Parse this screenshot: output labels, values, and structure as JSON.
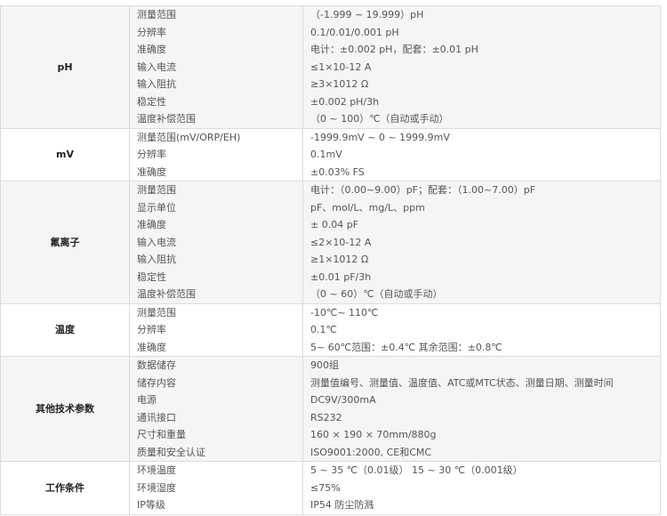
{
  "groups": [
    {
      "name": "pH",
      "rows": [
        [
          "测量范围",
          "（-1.999 ~ 19.999）pH"
        ],
        [
          "分辨率",
          "0.1/0.01/0.001 pH"
        ],
        [
          "准确度",
          "电计：±0.002 pH，配套：±0.01 pH"
        ],
        [
          "输入电流",
          "≤1×10-12 A"
        ],
        [
          "输入阻抗",
          "≥3×1012 Ω"
        ],
        [
          "稳定性",
          "±0.002 pH/3h"
        ],
        [
          "温度补偿范围",
          "（0 ~ 100）℃（自动或手动）"
        ]
      ]
    },
    {
      "name": "mV",
      "rows": [
        [
          "测量范围(mV/ORP/EH)",
          "-1999.9mV ~ 0 ~ 1999.9mV"
        ],
        [
          "分辨率",
          "0.1mV"
        ],
        [
          "准确度",
          "±0.03% FS"
        ]
      ]
    },
    {
      "name": "氟离子",
      "rows": [
        [
          "测量范围",
          "电计：（0.00~9.00）pF；配套：（1.00~7.00）pF"
        ],
        [
          "显示单位",
          "pF、mol/L、mg/L、ppm"
        ],
        [
          "准确度",
          "± 0.04 pF"
        ],
        [
          "输入电流",
          "≤2×10-12 A"
        ],
        [
          "输入阻抗",
          "≥1×1012 Ω"
        ],
        [
          "稳定性",
          "±0.01 pF/3h"
        ],
        [
          "温度补偿范围",
          "（0 ~ 60）℃（自动或手动）"
        ]
      ]
    },
    {
      "name": "温度",
      "rows": [
        [
          "测量范围",
          "-10℃~ 110℃"
        ],
        [
          "分辨率",
          "0.1℃"
        ],
        [
          "准确度",
          "5~ 60℃范围：±0.4℃  其余范围：±0.8℃"
        ]
      ]
    },
    {
      "name": "其他技术参数",
      "rows": [
        [
          "数据储存",
          "900组"
        ],
        [
          "储存内容",
          "测量值编号、测量值、温度值、ATC或MTC状态、测量日期、测量时间"
        ],
        [
          "电源",
          "DC9V/300mA"
        ],
        [
          "通讯接口",
          "RS232"
        ],
        [
          "尺寸和重量",
          "160 × 190 × 70mm/880g"
        ],
        [
          "质量和安全认证",
          "ISO9001:2000, CE和CMC"
        ]
      ]
    },
    {
      "name": "工作条件",
      "rows": [
        [
          "环境温度",
          "5 ~ 35 ℃（0.01级）  15 ~ 30 ℃（0.001级）"
        ],
        [
          "环境湿度",
          "≤75%"
        ],
        [
          "IP等级",
          "IP54  防尘防溅"
        ]
      ]
    }
  ]
}
